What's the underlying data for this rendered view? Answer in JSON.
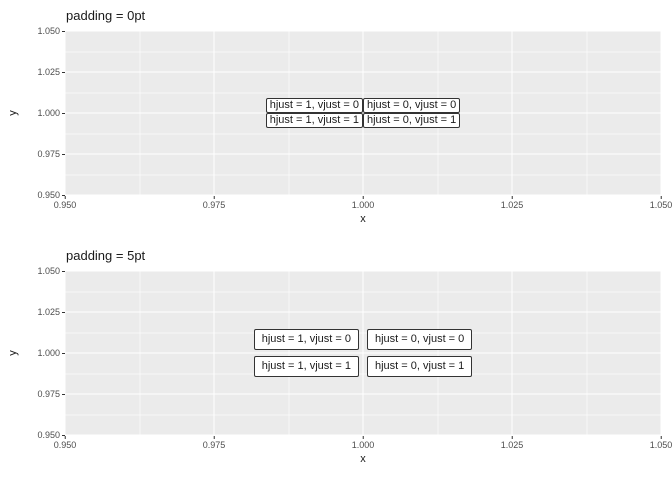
{
  "chart_data": [
    {
      "type": "scatter",
      "title": "padding = 0pt",
      "xlabel": "x",
      "ylabel": "y",
      "xlim": [
        0.95,
        1.05
      ],
      "ylim": [
        0.95,
        1.05
      ],
      "x_ticks": [
        0.95,
        0.975,
        1.0,
        1.025,
        1.05
      ],
      "y_ticks": [
        0.95,
        0.975,
        1.0,
        1.025,
        1.05
      ],
      "grid": true,
      "legend": false,
      "label_padding": "0pt",
      "annotations": [
        {
          "x": 1.0,
          "y": 1.0,
          "text": "hjust = 1, vjust = 0",
          "hjust": 1,
          "vjust": 0
        },
        {
          "x": 1.0,
          "y": 1.0,
          "text": "hjust = 0, vjust = 0",
          "hjust": 0,
          "vjust": 0
        },
        {
          "x": 1.0,
          "y": 1.0,
          "text": "hjust = 1, vjust = 1",
          "hjust": 1,
          "vjust": 1
        },
        {
          "x": 1.0,
          "y": 1.0,
          "text": "hjust = 0, vjust = 1",
          "hjust": 0,
          "vjust": 1
        }
      ]
    },
    {
      "type": "scatter",
      "title": "padding = 5pt",
      "xlabel": "x",
      "ylabel": "y",
      "xlim": [
        0.95,
        1.05
      ],
      "ylim": [
        0.95,
        1.05
      ],
      "x_ticks": [
        0.95,
        0.975,
        1.0,
        1.025,
        1.05
      ],
      "y_ticks": [
        0.95,
        0.975,
        1.0,
        1.025,
        1.05
      ],
      "grid": true,
      "legend": false,
      "label_padding": "5pt",
      "annotations": [
        {
          "x": 1.0,
          "y": 1.0,
          "text": "hjust = 1, vjust = 0",
          "hjust": 1,
          "vjust": 0
        },
        {
          "x": 1.0,
          "y": 1.0,
          "text": "hjust = 0, vjust = 0",
          "hjust": 0,
          "vjust": 0
        },
        {
          "x": 1.0,
          "y": 1.0,
          "text": "hjust = 1, vjust = 1",
          "hjust": 1,
          "vjust": 1
        },
        {
          "x": 1.0,
          "y": 1.0,
          "text": "hjust = 0, vjust = 1",
          "hjust": 0,
          "vjust": 1
        }
      ]
    }
  ],
  "display": {
    "colors": {
      "panel_background": "#EBEBEB",
      "gridline": "#FFFFFF",
      "tick_text": "#4D4D4D",
      "label_box_border": "#333333",
      "label_box_fill": "#FFFFFF"
    },
    "charts": [
      {
        "title": "padding = 0pt",
        "xlabel": "x",
        "ylabel": "y",
        "y_tick_labels": [
          "1.050",
          "1.025",
          "1.000",
          "0.975",
          "0.950"
        ],
        "x_tick_labels": [
          "0.950",
          "0.975",
          "1.000",
          "1.025",
          "1.050"
        ],
        "boxes": {
          "tl": "hjust = 1, vjust = 0",
          "tr": "hjust = 0, vjust = 0",
          "bl": "hjust = 1, vjust = 1",
          "br": "hjust = 0, vjust = 1"
        }
      },
      {
        "title": "padding = 5pt",
        "xlabel": "x",
        "ylabel": "y",
        "y_tick_labels": [
          "1.050",
          "1.025",
          "1.000",
          "0.975",
          "0.950"
        ],
        "x_tick_labels": [
          "0.950",
          "0.975",
          "1.000",
          "1.025",
          "1.050"
        ],
        "boxes": {
          "tl": "hjust = 1, vjust = 0",
          "tr": "hjust = 0, vjust = 0",
          "bl": "hjust = 1, vjust = 1",
          "br": "hjust = 0, vjust = 1"
        }
      }
    ]
  }
}
